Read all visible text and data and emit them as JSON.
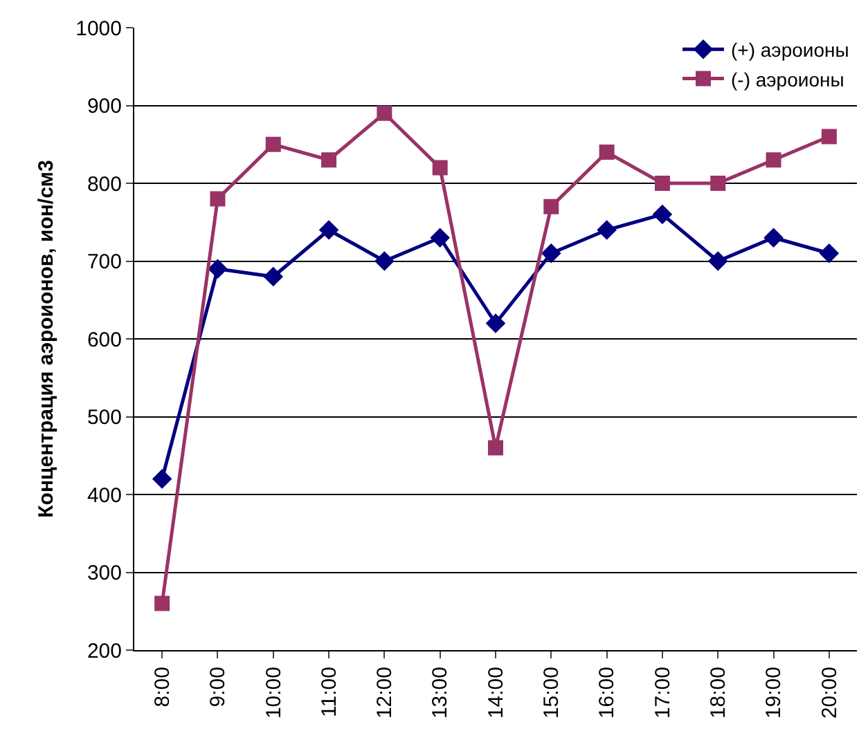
{
  "chart_data": {
    "type": "line",
    "ylabel": "Концентрация аэроионов, ион/см3",
    "categories": [
      "8:00",
      "9:00",
      "10:00",
      "11:00",
      "12:00",
      "13:00",
      "14:00",
      "15:00",
      "16:00",
      "17:00",
      "18:00",
      "19:00",
      "20:00"
    ],
    "series": [
      {
        "name": "(+) аэроионы",
        "color": "#000080",
        "marker": "diamond",
        "values": [
          420,
          690,
          680,
          740,
          700,
          730,
          620,
          710,
          740,
          760,
          700,
          730,
          710
        ]
      },
      {
        "name": "(-) аэроионы",
        "color": "#993366",
        "marker": "square",
        "values": [
          260,
          780,
          850,
          830,
          890,
          820,
          460,
          770,
          840,
          800,
          800,
          830,
          860
        ]
      }
    ],
    "ylim": [
      200,
      1000
    ],
    "yticks": [
      200,
      300,
      400,
      500,
      600,
      700,
      800,
      900,
      1000
    ],
    "grid": "y",
    "legend": "top right",
    "line_style": "solid"
  }
}
